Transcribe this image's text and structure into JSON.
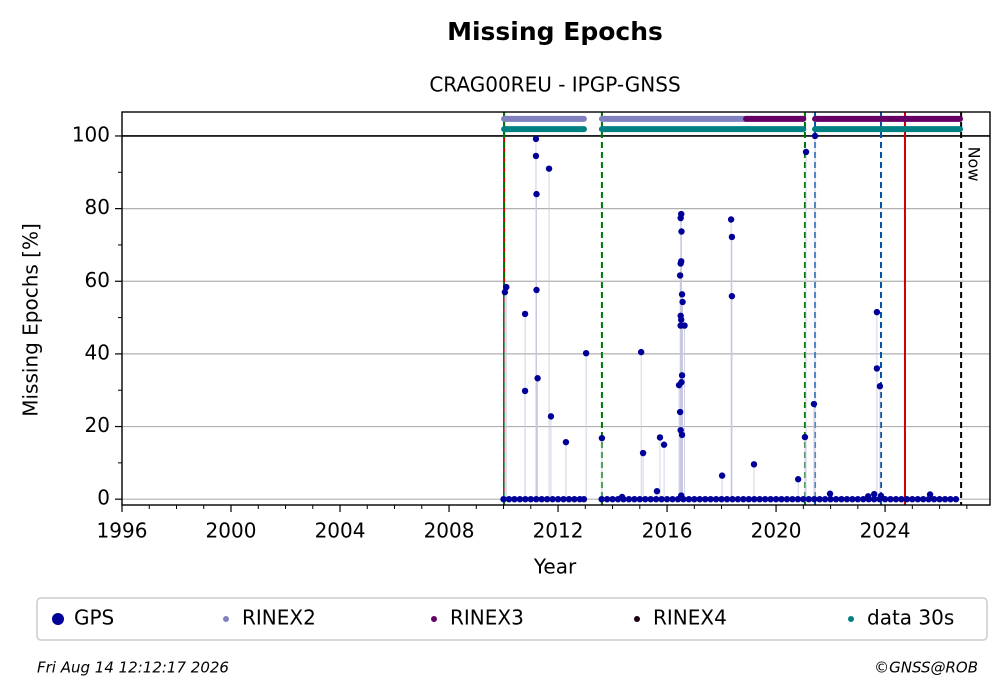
{
  "chart_data": {
    "type": "scatter",
    "title": "Missing Epochs",
    "subtitle": "CRAG00REU - IPGP-GNSS",
    "x_label": "Year",
    "y_label": "Missing Epochs [%]",
    "xlim": [
      1996,
      2027.85
    ],
    "ylim": [
      -1.6,
      106.6
    ],
    "xticks": [
      1996,
      2000,
      2004,
      2008,
      2012,
      2016,
      2020,
      2024
    ],
    "xminor": [
      1997,
      1998,
      1999,
      2001,
      2002,
      2003,
      2005,
      2006,
      2007,
      2009,
      2010,
      2011,
      2013,
      2014,
      2015,
      2017,
      2018,
      2019,
      2021,
      2022,
      2023,
      2025,
      2026,
      2027
    ],
    "yticks": [
      0,
      20,
      40,
      60,
      80,
      100
    ],
    "yminor": [
      10,
      30,
      50,
      70,
      90
    ],
    "grid": true,
    "ref_line": 100,
    "series": [
      {
        "name": "GPS",
        "color": "#000099",
        "x": [
          2010.0,
          2010.2,
          2010.4,
          2010.6,
          2010.8,
          2011.0,
          2011.2,
          2011.4,
          2011.6,
          2011.8,
          2012.0,
          2012.2,
          2012.4,
          2012.6,
          2012.8,
          2012.95,
          2013.6,
          2013.8,
          2014.0,
          2014.2,
          2014.4,
          2014.6,
          2014.8,
          2015.0,
          2015.2,
          2015.4,
          2015.6,
          2015.8,
          2016.0,
          2016.2,
          2016.4,
          2016.6,
          2016.8,
          2017.0,
          2017.2,
          2017.4,
          2017.6,
          2017.8,
          2018.0,
          2018.2,
          2018.4,
          2018.6,
          2018.8,
          2019.0,
          2019.2,
          2019.4,
          2019.6,
          2019.8,
          2020.0,
          2020.2,
          2020.4,
          2020.6,
          2020.8,
          2021.0,
          2021.2,
          2021.4,
          2021.6,
          2021.8,
          2022.0,
          2022.2,
          2022.4,
          2022.6,
          2022.8,
          2023.0,
          2023.2,
          2023.4,
          2023.6,
          2023.8,
          2024.0,
          2024.2,
          2024.4,
          2024.6,
          2024.8,
          2025.0,
          2025.2,
          2025.4,
          2025.6,
          2025.8,
          2026.0,
          2026.2,
          2026.4,
          2026.6,
          2010.05,
          2010.1,
          2010.79,
          2010.79,
          2011.19,
          2011.19,
          2011.21,
          2011.21,
          2011.25,
          2011.67,
          2011.74,
          2012.29,
          2013.03,
          2013.61,
          2014.35,
          2015.05,
          2015.12,
          2015.63,
          2015.74,
          2015.89,
          2016.44,
          2016.48,
          2016.5,
          2016.52,
          2016.5,
          2016.52,
          2016.53,
          2016.55,
          2016.57,
          2016.5,
          2016.52,
          2016.5,
          2016.64,
          2016.55,
          2016.53,
          2016.48,
          2016.5,
          2016.55,
          2016.52,
          2018.02,
          2018.35,
          2018.38,
          2018.38,
          2019.19,
          2020.81,
          2021.06,
          2021.1,
          2021.39,
          2021.43,
          2021.98,
          2023.38,
          2023.6,
          2023.7,
          2023.7,
          2023.81,
          2023.85,
          2025.65
        ],
        "values": [
          0,
          0,
          0,
          0,
          0,
          0,
          0,
          0,
          0,
          0,
          0,
          0,
          0,
          0,
          0,
          0,
          0,
          0,
          0,
          0,
          0,
          0,
          0,
          0,
          0,
          0,
          0,
          0,
          0,
          0,
          0,
          0,
          0,
          0,
          0,
          0,
          0,
          0,
          0,
          0,
          0,
          0,
          0,
          0,
          0,
          0,
          0,
          0,
          0,
          0,
          0,
          0,
          0,
          0,
          0,
          0,
          0,
          0,
          0,
          0,
          0,
          0,
          0,
          0,
          0,
          0,
          0,
          0,
          0,
          0,
          0,
          0,
          0,
          0,
          0,
          0,
          0,
          0,
          0,
          0,
          0,
          0,
          57,
          58.4,
          51,
          29.8,
          99.2,
          94.5,
          84,
          57.6,
          33.3,
          91,
          22.8,
          15.7,
          40.2,
          16.8,
          0.6,
          40.5,
          12.7,
          2.2,
          17,
          15,
          31.4,
          61.6,
          77.4,
          78.5,
          64.9,
          65.5,
          73.7,
          56.4,
          54.3,
          50.5,
          49.4,
          47.8,
          47.8,
          34.1,
          32.2,
          24,
          19,
          17.7,
          1,
          6.5,
          77,
          72.2,
          55.9,
          9.6,
          5.5,
          17.1,
          95.6,
          26.2,
          100,
          1.5,
          0.8,
          1.4,
          51.5,
          36,
          31.1,
          0.9,
          1.3
        ]
      },
      {
        "name": "RINEX2",
        "color": "#8080c0",
        "level": 104.7,
        "periods": [
          [
            2010.02,
            2012.95
          ],
          [
            2013.61,
            2018.9
          ]
        ]
      },
      {
        "name": "RINEX3",
        "color": "#660066",
        "level": 104.7,
        "periods": [
          [
            2018.9,
            2021.0
          ],
          [
            2021.43,
            2026.75
          ]
        ]
      },
      {
        "name": "RINEX4",
        "color": "#1a0010",
        "level": 104.7,
        "periods": []
      },
      {
        "name": "data 30s",
        "color": "#008080",
        "level": 101.9,
        "periods": [
          [
            2010.02,
            2012.95
          ],
          [
            2013.61,
            2021.0
          ],
          [
            2021.43,
            2026.75
          ]
        ]
      }
    ],
    "events": [
      {
        "x": 2010.02,
        "color": "#cc0000",
        "style": "solid"
      },
      {
        "x": 2010.02,
        "color": "#007700",
        "style": "dashed"
      },
      {
        "x": 2013.61,
        "color": "#007700",
        "style": "dashed"
      },
      {
        "x": 2021.06,
        "color": "#007700",
        "style": "dashed"
      },
      {
        "x": 2021.43,
        "color": "#0055aa",
        "style": "dashed"
      },
      {
        "x": 2023.85,
        "color": "#0055aa",
        "style": "dashed"
      },
      {
        "x": 2024.73,
        "color": "#cc0000",
        "style": "solid"
      },
      {
        "x": 2026.79,
        "color": "#000000",
        "style": "dashed",
        "label": "Now"
      }
    ],
    "footer_left": "Fri Aug 14 12:12:17 2026",
    "footer_right": "©GNSS@ROB"
  }
}
